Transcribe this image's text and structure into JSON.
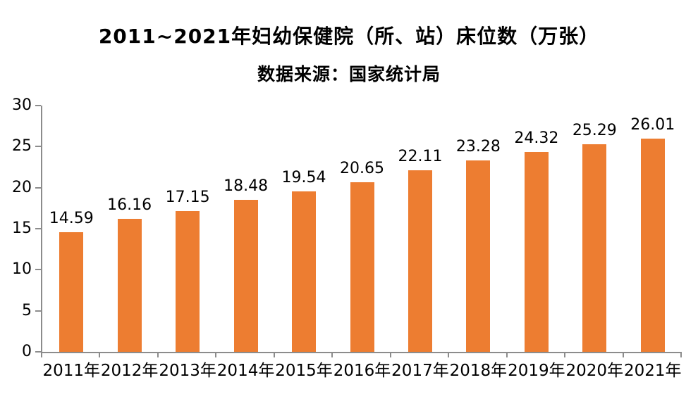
{
  "header": {
    "title": "2011~2021年妇幼保健院（所、站）床位数（万张）",
    "subtitle": "数据来源：国家统计局"
  },
  "chart_data": {
    "type": "bar",
    "title": "2011~2021年妇幼保健院（所、站）床位数（万张）",
    "subtitle": "数据来源：国家统计局",
    "categories": [
      "2011年",
      "2012年",
      "2013年",
      "2014年",
      "2015年",
      "2016年",
      "2017年",
      "2018年",
      "2019年",
      "2020年",
      "2021年"
    ],
    "values": [
      14.59,
      16.16,
      17.15,
      18.48,
      19.54,
      20.65,
      22.11,
      23.28,
      24.32,
      25.29,
      26.01
    ],
    "data_labels": [
      "14.59",
      "16.16",
      "17.15",
      "18.48",
      "19.54",
      "20.65",
      "22.11",
      "23.28",
      "24.32",
      "25.29",
      "26.01"
    ],
    "xlabel": "",
    "ylabel": "",
    "ylim": [
      0,
      30
    ],
    "yticks": [
      0,
      5,
      10,
      15,
      20,
      25,
      30
    ],
    "grid": false,
    "legend": false,
    "bar_color": "#ED7D31",
    "axis_color": "#8C8C8C",
    "text_color": "#000000",
    "background_color": "#FFFFFF"
  }
}
